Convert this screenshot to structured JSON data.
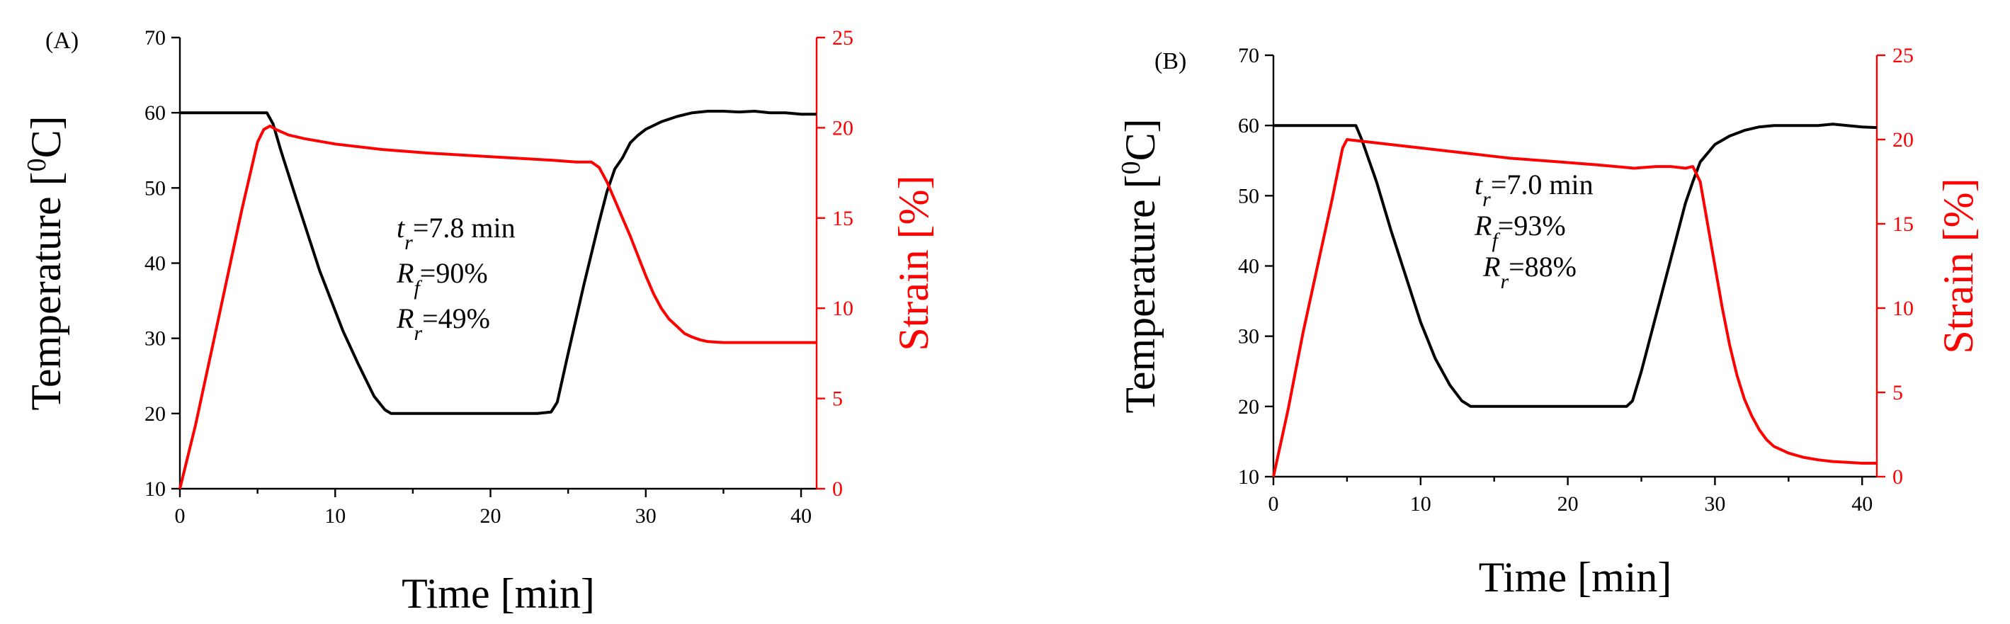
{
  "chart_data": [
    {
      "type": "line",
      "panel_label": "(A)",
      "xlabel": "Time [min]",
      "ylabel_left": "Temperature [°C]",
      "ylabel_left_prefix": "Temperature [",
      "ylabel_left_sup": "0",
      "ylabel_left_suffix": "C]",
      "ylabel_right": "Strain [%]",
      "xlim": [
        0,
        41
      ],
      "ylim_left": [
        10,
        70
      ],
      "ylim_right": [
        0,
        25
      ],
      "xticks": [
        0,
        10,
        20,
        30,
        40
      ],
      "yticks_left": [
        10,
        20,
        30,
        40,
        50,
        60,
        70
      ],
      "yticks_right": [
        0,
        5,
        10,
        15,
        20,
        25
      ],
      "grid": false,
      "annotations": [
        {
          "symbol": "t",
          "sub": "r",
          "text": "=7.8 min"
        },
        {
          "symbol": "R",
          "sub": "f",
          "text": "=90%"
        },
        {
          "symbol": "R",
          "sub": "r",
          "text": "=49%"
        }
      ],
      "series": [
        {
          "name": "Temperature",
          "axis": "left",
          "color": "#000000",
          "x": [
            0,
            1,
            2,
            3,
            4,
            5,
            5.6,
            6,
            6.5,
            7.5,
            9,
            10.5,
            11.5,
            12.5,
            13.2,
            13.6,
            15,
            17,
            19,
            21,
            23,
            23.9,
            24.3,
            25,
            26,
            27,
            27.5,
            28,
            28.5,
            29,
            29.5,
            30,
            31,
            32,
            33,
            34,
            35,
            36,
            37,
            38,
            39,
            40,
            41
          ],
          "y": [
            60,
            60,
            60,
            60,
            60,
            60,
            60,
            58.5,
            55,
            48.5,
            39,
            31,
            26.5,
            22.3,
            20.5,
            20,
            20,
            20,
            20,
            20,
            20,
            20.2,
            21.5,
            28,
            37,
            45.5,
            49.5,
            52.5,
            54,
            56,
            57,
            57.8,
            58.8,
            59.5,
            60,
            60.2,
            60.2,
            60.1,
            60.2,
            60,
            60,
            59.8,
            59.8
          ]
        },
        {
          "name": "Strain",
          "axis": "right",
          "color": "#ff0000",
          "x": [
            0,
            1,
            2,
            3,
            4,
            5,
            5.4,
            5.8,
            6.2,
            7,
            8,
            10,
            13,
            16,
            20,
            24,
            25.5,
            26.5,
            27,
            27.5,
            28,
            28.5,
            29,
            29.5,
            30,
            30.5,
            31,
            31.5,
            32,
            32.5,
            33,
            33.5,
            34,
            35,
            37,
            39,
            41
          ],
          "y": [
            0,
            3.5,
            7.5,
            11.5,
            15.5,
            19.2,
            19.9,
            20.1,
            19.9,
            19.6,
            19.4,
            19.1,
            18.8,
            18.6,
            18.4,
            18.2,
            18.1,
            18.1,
            17.8,
            17,
            16,
            15,
            14,
            12.9,
            11.8,
            10.8,
            10,
            9.4,
            9,
            8.6,
            8.4,
            8.25,
            8.15,
            8.1,
            8.1,
            8.1,
            8.1
          ]
        }
      ]
    },
    {
      "type": "line",
      "panel_label": "(B)",
      "xlabel": "Time [min]",
      "ylabel_left": "Temperature [°C]",
      "ylabel_left_prefix": "Temperature [",
      "ylabel_left_sup": "0",
      "ylabel_left_suffix": "C]",
      "ylabel_right": "Strain [%]",
      "xlim": [
        0,
        41
      ],
      "ylim_left": [
        10,
        70
      ],
      "ylim_right": [
        0,
        25
      ],
      "xticks": [
        0,
        10,
        20,
        30,
        40
      ],
      "yticks_left": [
        10,
        20,
        30,
        40,
        50,
        60,
        70
      ],
      "yticks_right": [
        0,
        5,
        10,
        15,
        20,
        25
      ],
      "grid": false,
      "annotations": [
        {
          "symbol": "t",
          "sub": "r",
          "text": "=7.0 min"
        },
        {
          "symbol": "R",
          "sub": "f",
          "text": "=93%"
        },
        {
          "symbol": "R",
          "sub": "r",
          "text": "=88%"
        }
      ],
      "series": [
        {
          "name": "Temperature",
          "axis": "left",
          "color": "#000000",
          "x": [
            0,
            1,
            2,
            3,
            4,
            5,
            5.6,
            6,
            7,
            8,
            9,
            10,
            11,
            12,
            12.8,
            13.4,
            15,
            17,
            19,
            21,
            23,
            24,
            24.4,
            25,
            26,
            27,
            28,
            28.5,
            29,
            30,
            31,
            32,
            33,
            34,
            35,
            36,
            37,
            38,
            39,
            40,
            41
          ],
          "y": [
            60,
            60,
            60,
            60,
            60,
            60,
            60,
            58,
            52,
            45,
            38.5,
            32,
            26.8,
            23,
            20.8,
            20,
            20,
            20,
            20,
            20,
            20,
            20,
            20.8,
            25,
            33,
            41,
            49,
            52,
            54.8,
            57.3,
            58.5,
            59.3,
            59.8,
            60,
            60,
            60,
            60,
            60.2,
            60,
            59.8,
            59.7
          ]
        },
        {
          "name": "Strain",
          "axis": "right",
          "color": "#ff0000",
          "x": [
            0,
            1,
            2,
            3,
            4,
            4.7,
            5,
            6,
            8,
            10,
            13,
            16,
            19,
            22,
            24.5,
            26,
            27,
            28,
            28.5,
            29,
            29.5,
            30,
            30.5,
            31,
            31.5,
            32,
            32.5,
            33,
            33.5,
            34,
            35,
            36,
            37,
            38,
            39,
            40,
            41
          ],
          "y": [
            0,
            4,
            8.5,
            12.5,
            16.5,
            19.5,
            20,
            19.9,
            19.7,
            19.5,
            19.2,
            18.9,
            18.7,
            18.5,
            18.3,
            18.4,
            18.4,
            18.3,
            18.4,
            17.5,
            15,
            12.5,
            10,
            7.8,
            6,
            4.6,
            3.6,
            2.8,
            2.2,
            1.8,
            1.4,
            1.15,
            1,
            0.9,
            0.85,
            0.8,
            0.8
          ]
        }
      ]
    }
  ]
}
